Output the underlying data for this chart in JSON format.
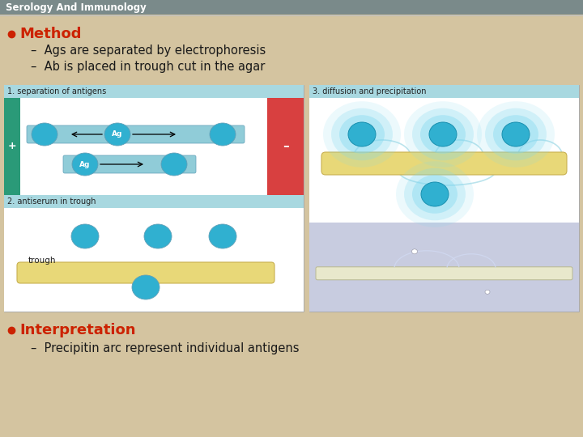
{
  "bg_color": "#d4c4a0",
  "header_color": "#7a8a8a",
  "header_text": "Serology And Immunology",
  "header_text_color": "#ffffff",
  "title_bullet": "Method",
  "title_bullet_color": "#cc2200",
  "bullet1": "Ags are separated by electrophoresis",
  "bullet2": "Ab is placed in trough cut in the agar",
  "interp_bullet": "Interpretation",
  "interp_bullet_color": "#cc2200",
  "interp_text": "Precipitin arc represent individual antigens",
  "panel_label_bg": "#a8d8e0",
  "panel_white_bg": "#f5f5f5",
  "panel1_label": "1. separation of antigens",
  "panel2_label": "2. antiserum in trough",
  "panel3_label": "3. diffusion and precipitation",
  "panel3_white_bg": "#f0f8ff",
  "panel3_photo_bg": "#c8cce0",
  "cyan_color": "#30b0d0",
  "cyan_glow": "#80d8f0",
  "trough_color": "#e8d878",
  "trough_edge": "#c8b050",
  "tube_color": "#90ccd8",
  "tube_edge": "#60a0b8",
  "plus_green": "#2a9a78",
  "minus_red": "#d84040",
  "text_color": "#1a1a1a",
  "label_color": "#222222",
  "header_line_color": "#c0c0c0"
}
